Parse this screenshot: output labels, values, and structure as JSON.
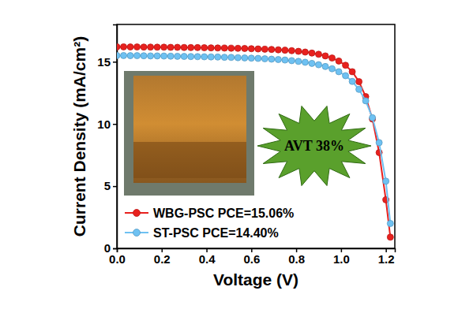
{
  "chart_data": {
    "type": "line",
    "x_label": "Voltage (V)",
    "y_label": "Current Density (mA/cm²)",
    "annotations": [
      {
        "text": "AVT 38%"
      }
    ],
    "x": [
      0.0,
      0.03,
      0.06,
      0.09,
      0.12,
      0.15,
      0.18,
      0.21,
      0.24,
      0.27,
      0.3,
      0.33,
      0.36,
      0.39,
      0.42,
      0.45,
      0.48,
      0.51,
      0.54,
      0.57,
      0.6,
      0.63,
      0.66,
      0.69,
      0.72,
      0.75,
      0.78,
      0.81,
      0.84,
      0.87,
      0.9,
      0.93,
      0.96,
      0.99,
      1.02,
      1.05,
      1.08,
      1.11,
      1.14,
      1.17,
      1.2,
      1.22
    ],
    "series": [
      {
        "name": "WBG-PSC PCE=15.06%",
        "color": "#e8211e",
        "marker": "circle",
        "line_style": "solid",
        "values": [
          16.2,
          16.2,
          16.19,
          16.19,
          16.18,
          16.18,
          16.17,
          16.17,
          16.16,
          16.16,
          16.15,
          16.14,
          16.14,
          16.13,
          16.12,
          16.11,
          16.1,
          16.09,
          16.08,
          16.07,
          16.05,
          16.03,
          16.01,
          15.99,
          15.96,
          15.93,
          15.89,
          15.84,
          15.78,
          15.7,
          15.6,
          15.47,
          15.3,
          15.06,
          14.72,
          14.2,
          13.4,
          12.2,
          10.4,
          7.7,
          3.9,
          0.9
        ]
      },
      {
        "name": "ST-PSC PCE=14.40%",
        "color": "#6ec1f2",
        "marker": "circle",
        "line_style": "solid",
        "values": [
          15.5,
          15.5,
          15.49,
          15.49,
          15.48,
          15.47,
          15.47,
          15.46,
          15.45,
          15.44,
          15.43,
          15.42,
          15.41,
          15.4,
          15.39,
          15.38,
          15.36,
          15.35,
          15.33,
          15.31,
          15.29,
          15.27,
          15.24,
          15.21,
          15.18,
          15.14,
          15.09,
          15.03,
          14.96,
          14.87,
          14.76,
          14.62,
          14.44,
          14.2,
          13.88,
          13.42,
          12.78,
          11.86,
          10.5,
          8.5,
          5.4,
          2.0
        ]
      }
    ],
    "xlim": [
      0,
      1.24
    ],
    "ylim": [
      0,
      18
    ],
    "xticks": [
      {
        "value": 0,
        "label": "0.0"
      },
      {
        "value": 0.2,
        "label": "0.2"
      },
      {
        "value": 0.4,
        "label": "0.4"
      },
      {
        "value": 0.6,
        "label": "0.6"
      },
      {
        "value": 0.8,
        "label": "0.8"
      },
      {
        "value": 1,
        "label": "1.0"
      },
      {
        "value": 1.2,
        "label": "1.2"
      }
    ],
    "yticks": [
      0,
      5,
      10,
      15
    ],
    "grid": false,
    "legend": "bottom left"
  }
}
